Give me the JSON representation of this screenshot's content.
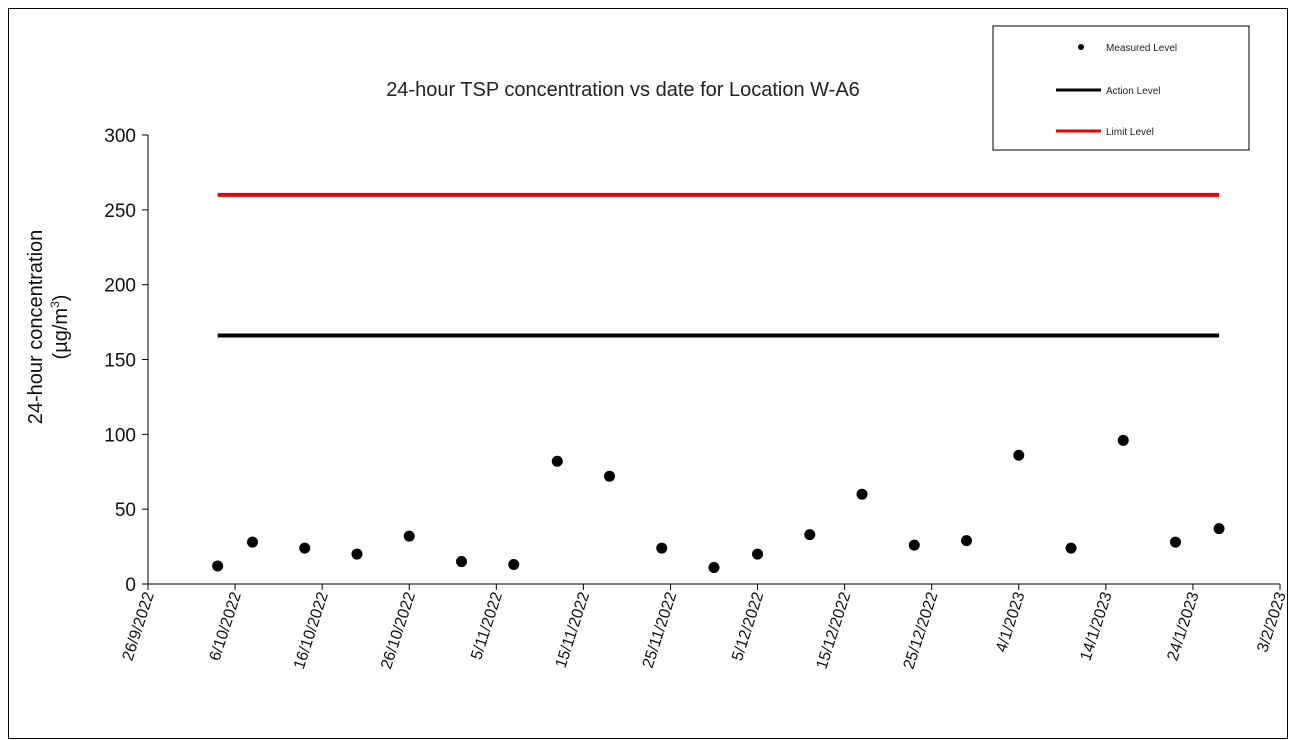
{
  "chart_data": {
    "type": "scatter",
    "title": "24-hour TSP concentration vs date for Location W-A6",
    "ylabel_line1": "24-hour concentration",
    "ylabel_line2_prefix": "(µg/m",
    "ylabel_line2_sup": "3",
    "ylabel_line2_suffix": ")",
    "ylim": [
      0,
      300
    ],
    "yticks": [
      0,
      50,
      100,
      150,
      200,
      250,
      300
    ],
    "xlim": [
      "2022-09-26",
      "2023-02-03"
    ],
    "xtick_dates": [
      "2022-09-26",
      "2022-10-06",
      "2022-10-16",
      "2022-10-26",
      "2022-11-05",
      "2022-11-15",
      "2022-11-25",
      "2022-12-05",
      "2022-12-15",
      "2022-12-25",
      "2023-01-04",
      "2023-01-14",
      "2023-01-24",
      "2023-02-03"
    ],
    "xtick_labels": [
      "26/9/2022",
      "6/10/2022",
      "16/10/2022",
      "26/10/2022",
      "5/11/2022",
      "15/11/2022",
      "25/11/2022",
      "5/12/2022",
      "15/12/2022",
      "25/12/2022",
      "4/1/2023",
      "14/1/2023",
      "24/1/2023",
      "3/2/2023"
    ],
    "legend_position": "top-right",
    "series": [
      {
        "name": "Measured Level",
        "kind": "scatter",
        "color": "#000000",
        "points": [
          {
            "date": "2022-10-04",
            "value": 12
          },
          {
            "date": "2022-10-08",
            "value": 28
          },
          {
            "date": "2022-10-14",
            "value": 24
          },
          {
            "date": "2022-10-20",
            "value": 20
          },
          {
            "date": "2022-10-26",
            "value": 32
          },
          {
            "date": "2022-11-01",
            "value": 15
          },
          {
            "date": "2022-11-07",
            "value": 13
          },
          {
            "date": "2022-11-12",
            "value": 82
          },
          {
            "date": "2022-11-18",
            "value": 72
          },
          {
            "date": "2022-11-24",
            "value": 24
          },
          {
            "date": "2022-11-30",
            "value": 11
          },
          {
            "date": "2022-12-05",
            "value": 20
          },
          {
            "date": "2022-12-11",
            "value": 33
          },
          {
            "date": "2022-12-17",
            "value": 60
          },
          {
            "date": "2022-12-23",
            "value": 26
          },
          {
            "date": "2022-12-29",
            "value": 29
          },
          {
            "date": "2023-01-04",
            "value": 86
          },
          {
            "date": "2023-01-10",
            "value": 24
          },
          {
            "date": "2023-01-16",
            "value": 96
          },
          {
            "date": "2023-01-22",
            "value": 28
          },
          {
            "date": "2023-01-27",
            "value": 37
          }
        ]
      },
      {
        "name": "Action Level",
        "kind": "line",
        "color": "#000000",
        "x": [
          "2022-10-04",
          "2023-01-27"
        ],
        "value": 166
      },
      {
        "name": "Limit Level",
        "kind": "line",
        "color": "#ee0000",
        "x": [
          "2022-10-04",
          "2023-01-27"
        ],
        "value": 260
      }
    ]
  }
}
